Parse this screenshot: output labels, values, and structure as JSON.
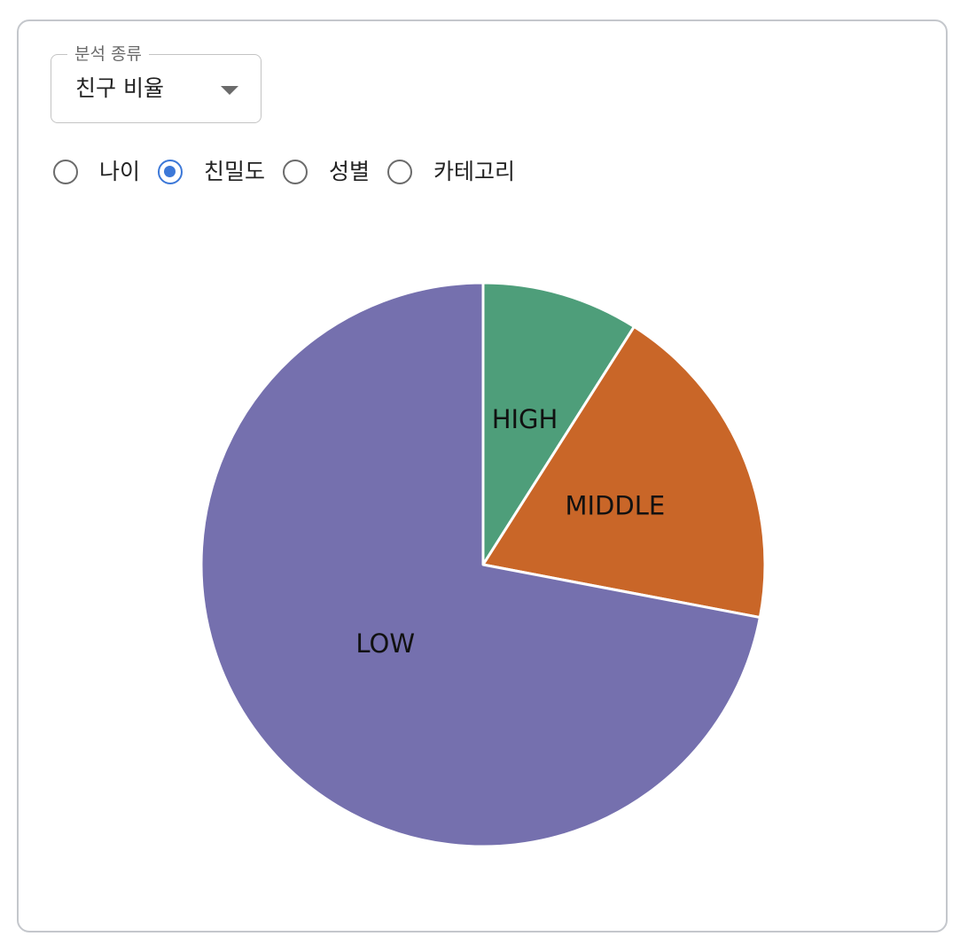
{
  "control": {
    "select_legend": "분석 종류",
    "select_value": "친구 비율"
  },
  "radios": [
    {
      "label": "나이",
      "checked": false
    },
    {
      "label": "친밀도",
      "checked": true
    },
    {
      "label": "성별",
      "checked": false
    },
    {
      "label": "카테고리",
      "checked": false
    }
  ],
  "colors": {
    "accent": "#3c78d8",
    "high": "#4e9e7a",
    "middle": "#c96628",
    "low": "#7570ae"
  },
  "chart_data": {
    "type": "pie",
    "title": "",
    "categories": [
      "HIGH",
      "MIDDLE",
      "LOW"
    ],
    "values": [
      9,
      19,
      72
    ],
    "start_angle_deg": 0,
    "direction": "clockwise",
    "colors": [
      "#4e9e7a",
      "#c96628",
      "#7570ae"
    ]
  }
}
